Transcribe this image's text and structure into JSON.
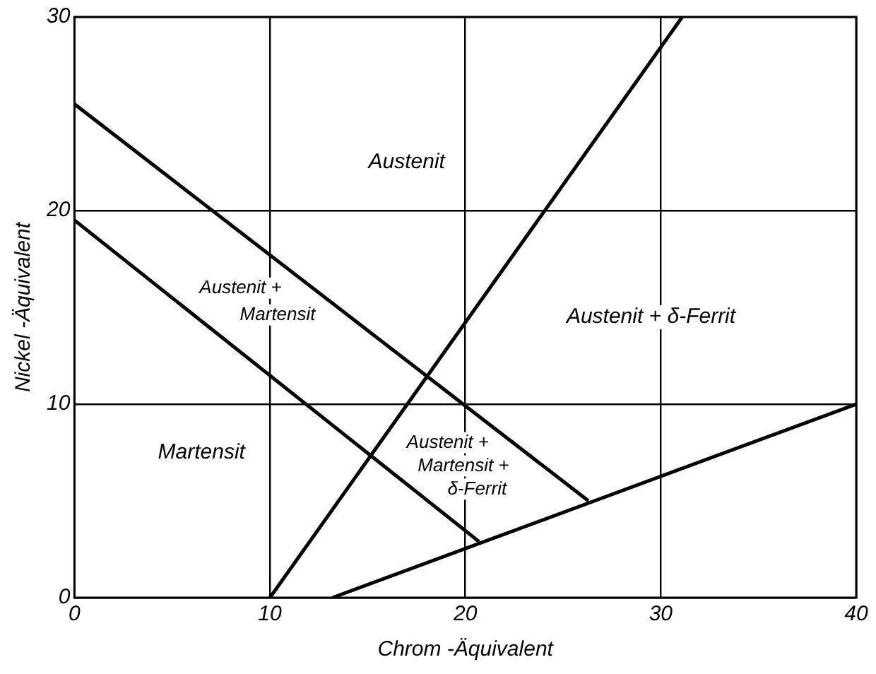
{
  "chart_data": {
    "type": "line",
    "xlabel": "Chrom -Äquivalent",
    "ylabel": "Nickel -Äquivalent",
    "xlim": [
      0,
      40
    ],
    "ylim": [
      0,
      30
    ],
    "xticks": [
      0,
      10,
      20,
      30,
      40
    ],
    "yticks": [
      0,
      10,
      20,
      30
    ],
    "grid": true,
    "legend": false,
    "marker": "none",
    "line_style": "solid",
    "series": [
      {
        "color": "#000000",
        "x": [
          0,
          26.3
        ],
        "values": [
          25.5,
          5.0
        ]
      },
      {
        "color": "#000000",
        "x": [
          0,
          20.7
        ],
        "values": [
          19.5,
          2.9
        ]
      },
      {
        "color": "#000000",
        "x": [
          10,
          31.1
        ],
        "values": [
          0,
          30
        ]
      },
      {
        "color": "#000000",
        "x": [
          13.2,
          40
        ],
        "values": [
          0,
          10
        ]
      }
    ],
    "annotations": [
      "Austenit",
      "Austenit +\nMartensit",
      "Austenit + δ-Ferrit",
      "Martensit",
      "Austenit +\nMartensit +\nδ-Ferrit"
    ]
  }
}
